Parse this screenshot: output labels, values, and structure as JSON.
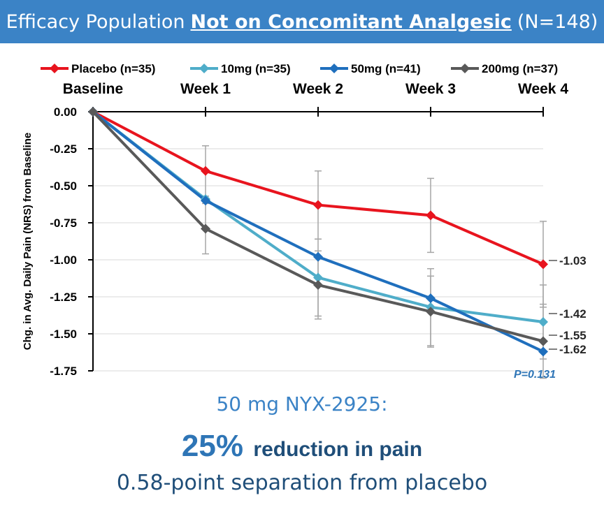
{
  "header": {
    "prefix": "Efficacy Population",
    "highlight": "Not on Concomitant Analgesic",
    "suffix": "(N=148)"
  },
  "chart_data": {
    "type": "line",
    "ylabel": "Chg. in Avg. Daily Pain (NRS) from Baseline",
    "xlabel": "",
    "categories": [
      "Baseline",
      "Week 1",
      "Week 2",
      "Week 3",
      "Week 4"
    ],
    "ylim": [
      -1.75,
      0
    ],
    "yticks": [
      "0.00",
      "-0.25",
      "-0.50",
      "-0.75",
      "-1.00",
      "-1.25",
      "-1.50",
      "-1.75"
    ],
    "ytick_values": [
      0,
      -0.25,
      -0.5,
      -0.75,
      -1.0,
      -1.25,
      -1.5,
      -1.75
    ],
    "grid": true,
    "legend_position": "top",
    "series": [
      {
        "name": "Placebo (n=35)",
        "color": "#e8141e",
        "values": [
          0,
          -0.4,
          -0.63,
          -0.7,
          -1.03
        ],
        "error_low": [
          null,
          -0.57,
          -0.86,
          -0.95,
          -1.32
        ],
        "error_high": [
          null,
          -0.23,
          -0.4,
          -0.45,
          -0.74
        ]
      },
      {
        "name": "10mg (n=35)",
        "color": "#4fadc9",
        "values": [
          0,
          -0.59,
          -1.12,
          -1.32,
          -1.42
        ],
        "error_low": [
          null,
          null,
          -1.38,
          -1.58,
          -1.67
        ],
        "error_high": [
          null,
          null,
          -0.86,
          -1.06,
          -1.17
        ]
      },
      {
        "name": "50mg (n=41)",
        "color": "#1f6fbd",
        "values": [
          0,
          -0.6,
          -0.98,
          -1.26,
          -1.62
        ],
        "error_low": [
          null,
          null,
          null,
          null,
          null
        ],
        "error_high": [
          null,
          null,
          null,
          null,
          null
        ]
      },
      {
        "name": "200mg (n=37)",
        "color": "#595959",
        "values": [
          0,
          -0.79,
          -1.17,
          -1.35,
          -1.55
        ],
        "error_low": [
          null,
          -0.96,
          -1.4,
          -1.59,
          -1.8
        ],
        "error_high": [
          null,
          -0.62,
          -0.94,
          -1.11,
          -1.3
        ]
      }
    ],
    "end_labels": [
      "-1.03",
      "-1.42",
      "-1.62",
      "-1.55"
    ],
    "annotation": "P=0.131"
  },
  "summary": {
    "line1": "50 mg NYX-2925:",
    "pct": "25%",
    "reduction_text": "reduction in pain",
    "line3": "0.58-point separation from placebo"
  }
}
